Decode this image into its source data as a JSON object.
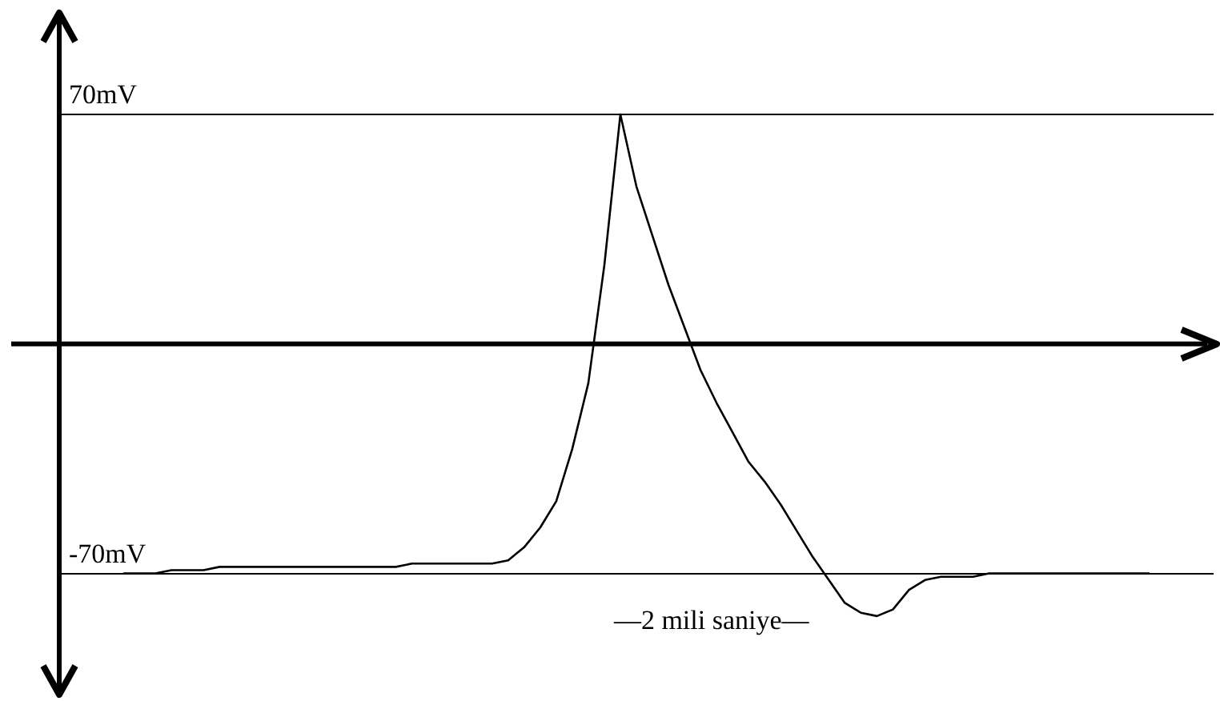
{
  "chart_data": {
    "type": "line",
    "categories": [
      null,
      null,
      null,
      null,
      null,
      null,
      null,
      null,
      null,
      null,
      null,
      null,
      null,
      null,
      null,
      null,
      null,
      null,
      null,
      null,
      null,
      null,
      null,
      null,
      null,
      null,
      null,
      null,
      null,
      null,
      null,
      null,
      null,
      null,
      null,
      null,
      null,
      null,
      null,
      null,
      null,
      null,
      null,
      null,
      null,
      null,
      null,
      null,
      null,
      null,
      null,
      null,
      null,
      null,
      null,
      null,
      null,
      null,
      null,
      null,
      null,
      null,
      null,
      null,
      null,
      null,
      null,
      null,
      null,
      null,
      null,
      null,
      null
    ],
    "series": [
      {
        "color": "#000000",
        "values": [
          null,
          null,
          null,
          null,
          -70,
          -70,
          -70,
          -69,
          -69,
          -69,
          -68,
          -68,
          -68,
          -68,
          -68,
          -68,
          -68,
          -68,
          -68,
          -68,
          -68,
          -68,
          -67,
          -67,
          -67,
          -67,
          -67,
          -67,
          -66,
          -62,
          -56,
          -48,
          -32,
          -12,
          24,
          70,
          48,
          33,
          18,
          5,
          -8,
          -18,
          -27,
          -36,
          -42,
          -49,
          -57,
          -65,
          -72,
          -79,
          -82,
          -83,
          -81,
          -75,
          -72,
          -71,
          -71,
          -71,
          -70,
          -70,
          -70,
          -70,
          -70,
          -70,
          -70,
          -70,
          -70,
          -70,
          -70,
          null,
          null,
          null,
          null
        ]
      }
    ],
    "ylim": [
      -105,
      100
    ],
    "yticks": [
      {
        "value": 70,
        "label": "70mV"
      },
      {
        "value": -70,
        "label": "-70mV"
      }
    ],
    "grid": "y",
    "legend": false,
    "marker": "none",
    "line_style": "solid",
    "annotations": [
      "—2 mili saniye—"
    ]
  }
}
